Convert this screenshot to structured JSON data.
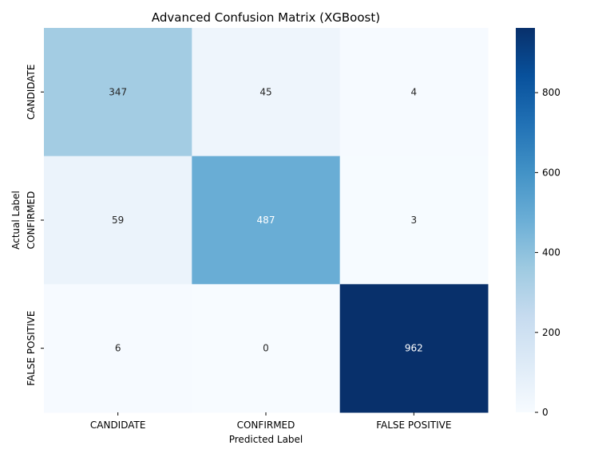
{
  "chart_data": {
    "type": "heatmap",
    "title": "Advanced Confusion Matrix (XGBoost)",
    "xlabel": "Predicted Label",
    "ylabel": "Actual Label",
    "x_categories": [
      "CANDIDATE",
      "CONFIRMED",
      "FALSE POSITIVE"
    ],
    "y_categories": [
      "CANDIDATE",
      "CONFIRMED",
      "FALSE POSITIVE"
    ],
    "values": [
      [
        347,
        45,
        4
      ],
      [
        59,
        487,
        3
      ],
      [
        6,
        0,
        962
      ]
    ],
    "colormap": "Blues",
    "color_range": [
      0,
      962
    ],
    "colorbar_ticks": [
      0,
      200,
      400,
      600,
      800
    ]
  }
}
